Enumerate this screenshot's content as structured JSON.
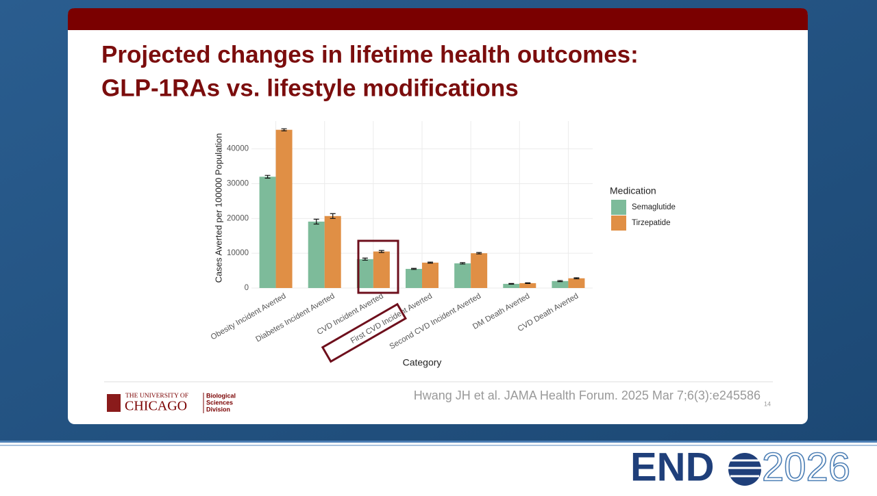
{
  "slide": {
    "title": [
      "Projected changes in lifetime health outcomes:",
      "GLP-1RAs vs. lifestyle modifications"
    ],
    "citation": "Hwang JH et al. JAMA Health Forum. 2025 Mar 7;6(3):e245586",
    "page_number": "14",
    "logo": {
      "line1": "THE UNIVERSITY OF",
      "line2": "CHICAGO",
      "division": [
        "Biological",
        "Sciences",
        "Division"
      ]
    }
  },
  "branding": {
    "left": "END",
    "right": "2026"
  },
  "chart_data": {
    "type": "bar",
    "x_label": "Category",
    "y_label": "Cases Averted per 100000 Population",
    "legend_title": "Medication",
    "categories": [
      "Obesity Incident Averted",
      "Diabetes Incident Averted",
      "CVD Incident Averted",
      "First CVD Incident Averted",
      "Second CVD Incident Averted",
      "DM Death Averted",
      "CVD Death Averted"
    ],
    "series": [
      {
        "name": "Semaglutide",
        "color": "#7dbb9a",
        "values": [
          32000,
          19100,
          8300,
          5500,
          7100,
          1200,
          2000
        ],
        "errors": [
          400,
          700,
          300,
          150,
          200,
          100,
          150
        ]
      },
      {
        "name": "Tirzepatide",
        "color": "#e08f45",
        "values": [
          45500,
          20700,
          10500,
          7300,
          10000,
          1400,
          2800
        ],
        "errors": [
          300,
          700,
          300,
          150,
          200,
          100,
          150
        ]
      }
    ],
    "ylim": [
      0,
      48000
    ],
    "yticks": [
      0,
      10000,
      20000,
      30000,
      40000
    ],
    "grid": true,
    "legend": "right"
  }
}
